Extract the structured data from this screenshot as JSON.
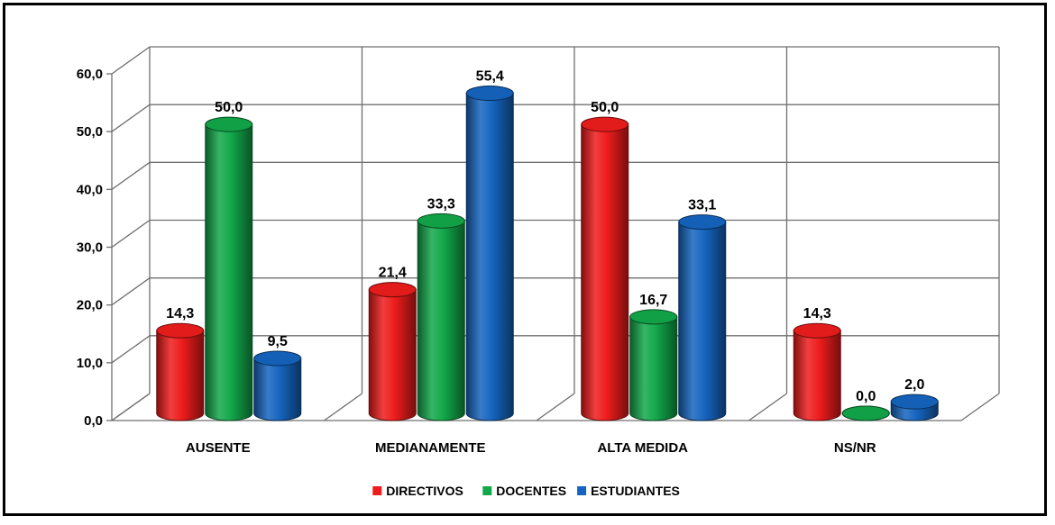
{
  "chart_data": {
    "type": "bar",
    "title": "",
    "xlabel": "",
    "ylabel": "",
    "categories": [
      "AUSENTE",
      "MEDIANAMENTE",
      "ALTA MEDIDA",
      "NS/NR"
    ],
    "series": [
      {
        "name": "DIRECTIVOS",
        "values": [
          14.3,
          21.4,
          50.0,
          14.3
        ],
        "labels": [
          "14,3",
          "21,4",
          "50,0",
          "14,3"
        ]
      },
      {
        "name": "DOCENTES",
        "values": [
          50.0,
          33.3,
          16.7,
          0.0
        ],
        "labels": [
          "50,0",
          "33,3",
          "16,7",
          "0,0"
        ]
      },
      {
        "name": "ESTUDIANTES",
        "values": [
          9.5,
          55.4,
          33.1,
          2.0
        ],
        "labels": [
          "9,5",
          "55,4",
          "33,1",
          "2,0"
        ]
      }
    ],
    "ylim": [
      0,
      60
    ],
    "yticks": [
      0,
      10,
      20,
      30,
      40,
      50,
      60
    ],
    "ytick_labels": [
      "0,0",
      "10,0",
      "20,0",
      "30,0",
      "40,0",
      "50,0",
      "60,0"
    ],
    "grid": true,
    "style": "3d-cylinder",
    "legend_position": "bottom",
    "colors": {
      "DIRECTIVOS": "#ee1c1c",
      "DOCENTES": "#12a84a",
      "ESTUDIANTES": "#1565c0",
      "gridline": "#6f6f6f"
    }
  }
}
